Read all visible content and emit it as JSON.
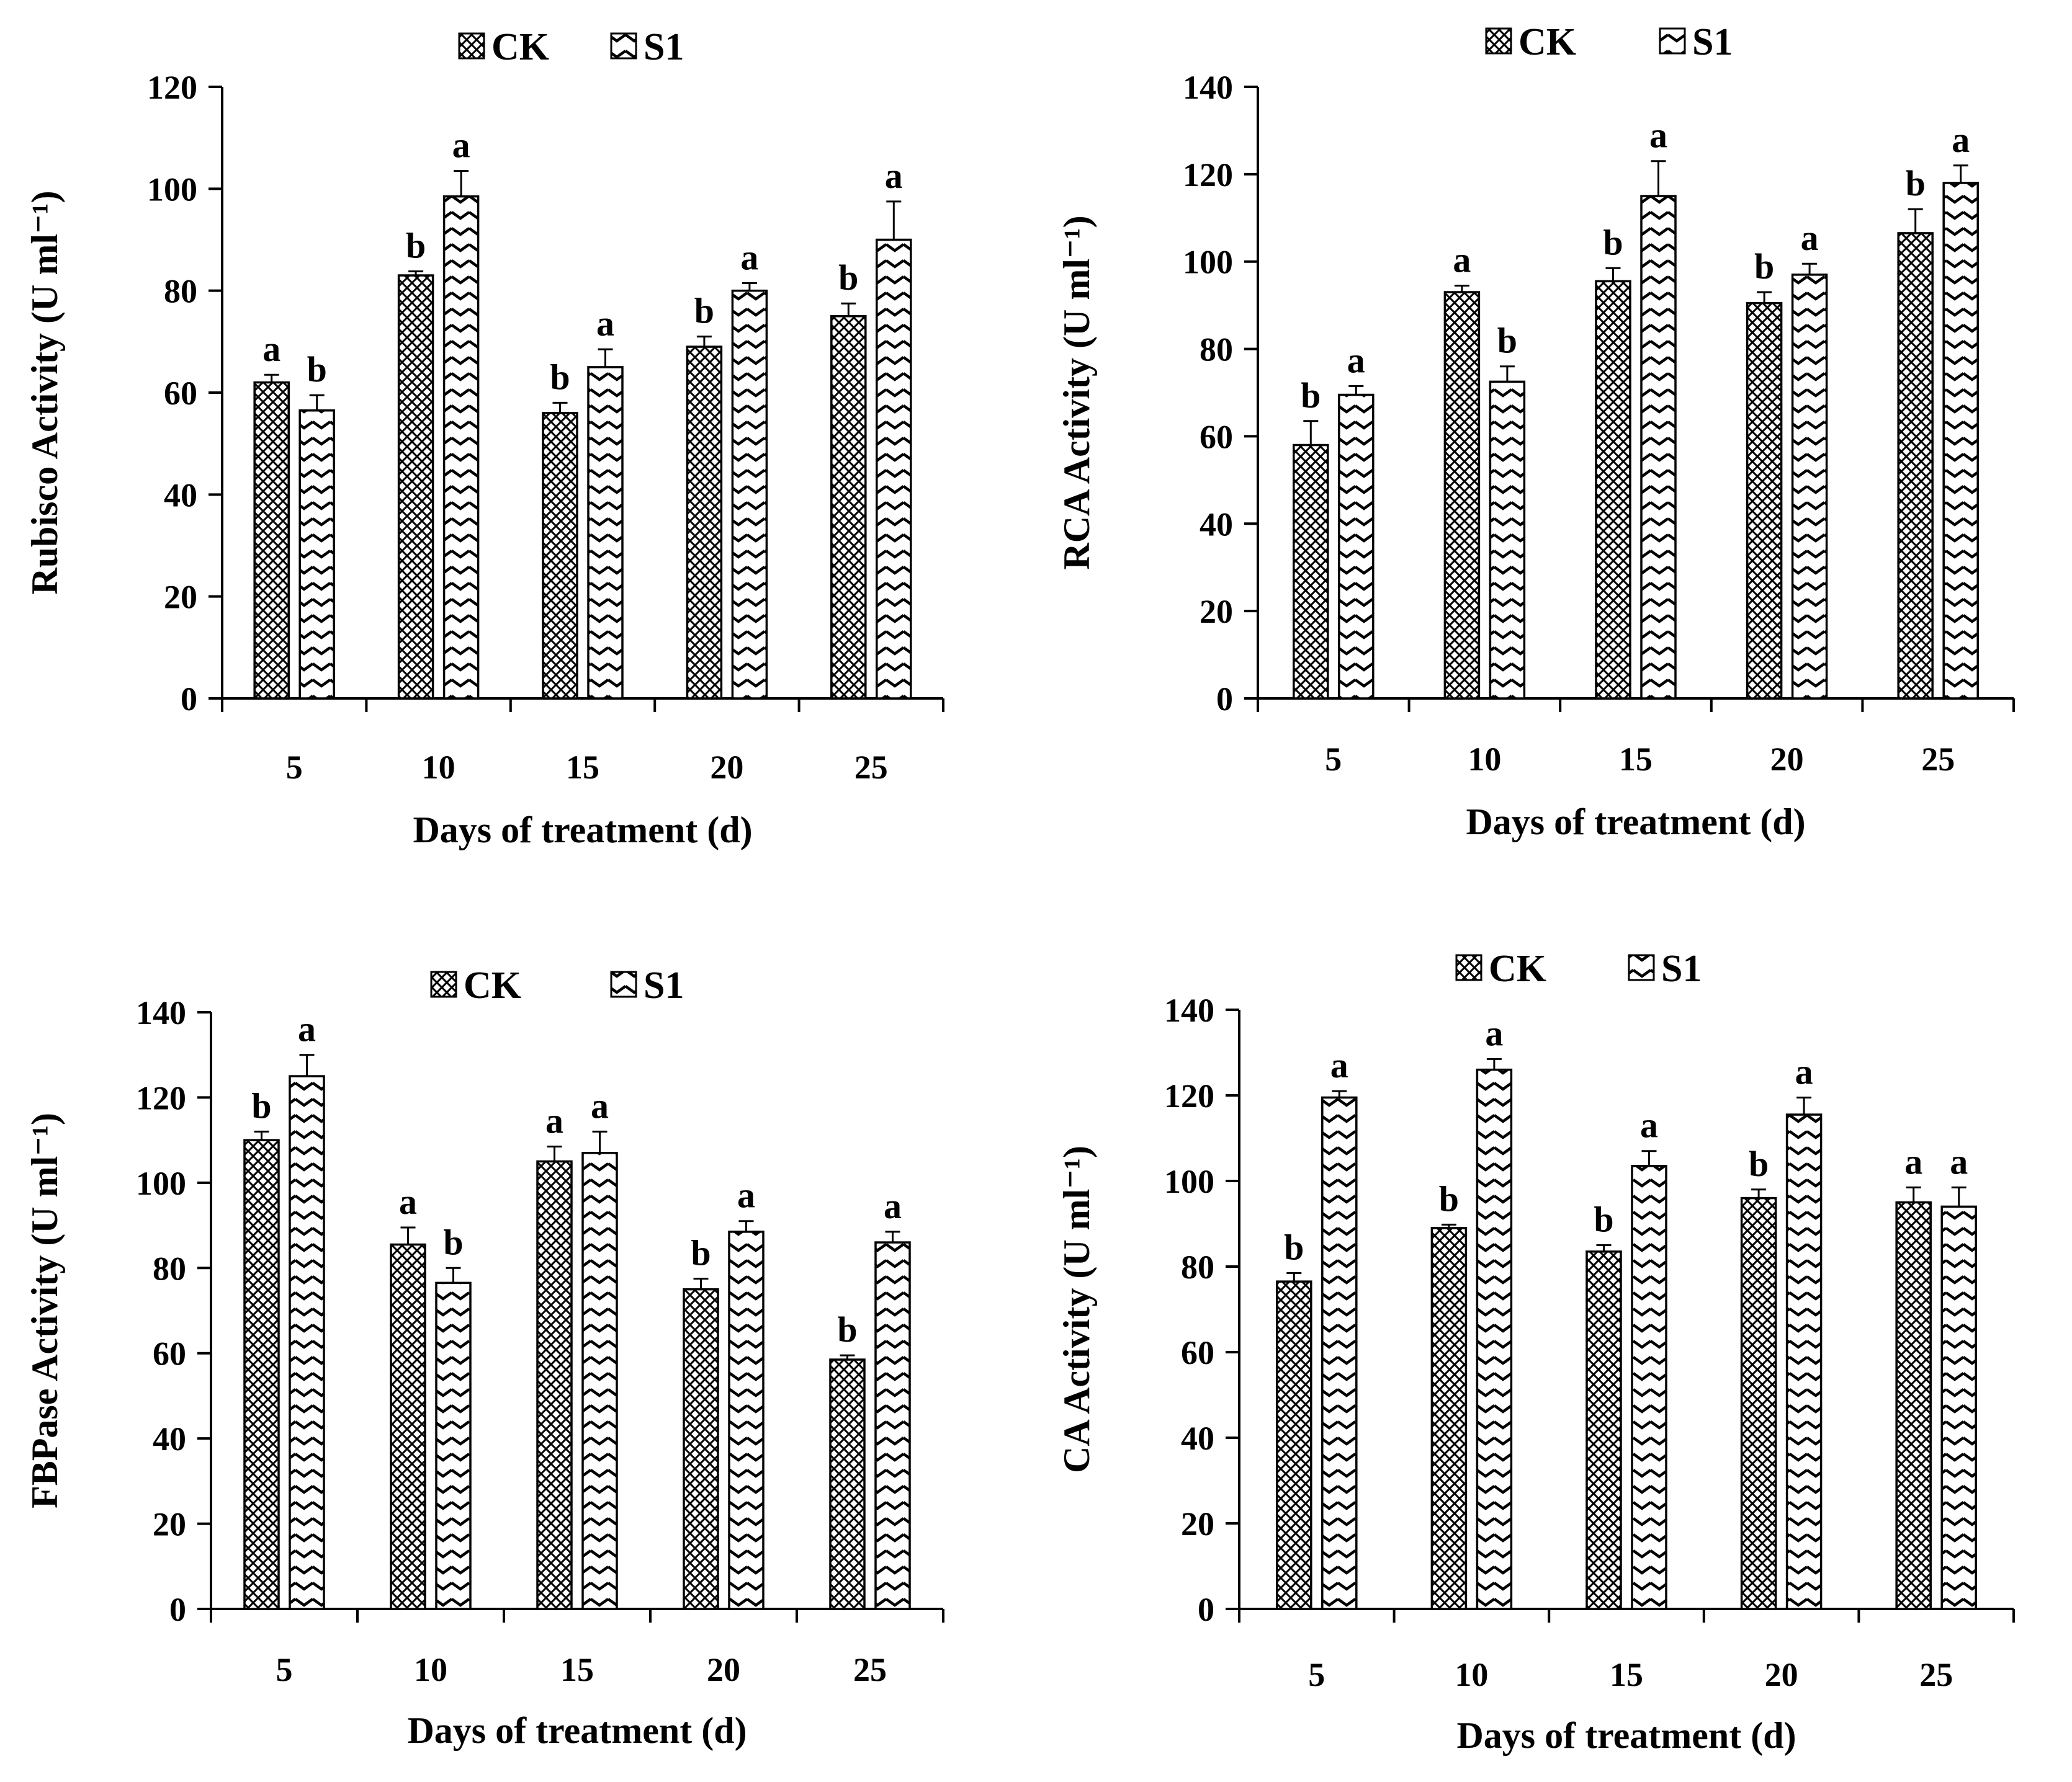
{
  "chart_data": [
    {
      "id": "rubisco",
      "type": "bar",
      "title": "",
      "xlabel": "Days of treatment (d)",
      "ylabel": "Rubisco Activity (U ml⁻¹)",
      "ylim": [
        0,
        120
      ],
      "yticks": [
        0,
        20,
        40,
        60,
        80,
        100,
        120
      ],
      "categories": [
        "5",
        "10",
        "15",
        "20",
        "25"
      ],
      "legend": [
        "CK",
        "S1"
      ],
      "legend_position": "top-center",
      "series": [
        {
          "name": "CK",
          "values": [
            62,
            83,
            56,
            69,
            75
          ],
          "errors": [
            1.5,
            0.8,
            2,
            2,
            2.5
          ],
          "letters": [
            "a",
            "b",
            "b",
            "b",
            "b"
          ]
        },
        {
          "name": "S1",
          "values": [
            56.5,
            98.5,
            65,
            80,
            90
          ],
          "errors": [
            3,
            5,
            3.5,
            1.5,
            7.5
          ],
          "letters": [
            "b",
            "a",
            "a",
            "a",
            "a"
          ]
        }
      ]
    },
    {
      "id": "rca",
      "type": "bar",
      "title": "",
      "xlabel": "Days of treatment (d)",
      "ylabel": "RCA Activity (U ml⁻¹)",
      "ylim": [
        0,
        140
      ],
      "yticks": [
        0,
        20,
        40,
        60,
        80,
        100,
        120,
        140
      ],
      "categories": [
        "5",
        "10",
        "15",
        "20",
        "25"
      ],
      "legend": [
        "CK",
        "S1"
      ],
      "legend_position": "top-center",
      "series": [
        {
          "name": "CK",
          "values": [
            58,
            93,
            95.5,
            90.5,
            106.5
          ],
          "errors": [
            5.5,
            1.5,
            3,
            2.5,
            5.5
          ],
          "letters": [
            "b",
            "a",
            "b",
            "b",
            "b"
          ]
        },
        {
          "name": "S1",
          "values": [
            69.5,
            72.5,
            115,
            97,
            118
          ],
          "errors": [
            2,
            3.5,
            8,
            2.5,
            4
          ],
          "letters": [
            "a",
            "b",
            "a",
            "a",
            "a"
          ]
        }
      ]
    },
    {
      "id": "fbpase",
      "type": "bar",
      "title": "",
      "xlabel": "Days of treatment (d)",
      "ylabel": "FBPase Activity (U ml⁻¹)",
      "ylim": [
        0,
        140
      ],
      "yticks": [
        0,
        20,
        40,
        60,
        80,
        100,
        120,
        140
      ],
      "categories": [
        "5",
        "10",
        "15",
        "20",
        "25"
      ],
      "legend": [
        "CK",
        "S1"
      ],
      "legend_position": "top-center",
      "series": [
        {
          "name": "CK",
          "values": [
            110,
            85.5,
            105,
            75,
            58.5
          ],
          "errors": [
            2,
            4,
            3.5,
            2.5,
            1
          ],
          "letters": [
            "b",
            "a",
            "a",
            "b",
            "b"
          ]
        },
        {
          "name": "S1",
          "values": [
            125,
            76.5,
            107,
            88.5,
            86
          ],
          "errors": [
            5,
            3.5,
            5,
            2.5,
            2.5
          ],
          "letters": [
            "a",
            "b",
            "a",
            "a",
            "a"
          ]
        }
      ]
    },
    {
      "id": "ca",
      "type": "bar",
      "title": "",
      "xlabel": "Days of treatment (d)",
      "ylabel": "CA  Activity (U ml⁻¹)",
      "ylim": [
        0,
        140
      ],
      "yticks": [
        0,
        20,
        40,
        60,
        80,
        100,
        120,
        140
      ],
      "categories": [
        "5",
        "10",
        "15",
        "20",
        "25"
      ],
      "legend": [
        "CK",
        "S1"
      ],
      "legend_position": "top-center",
      "series": [
        {
          "name": "CK",
          "values": [
            76.5,
            89,
            83.5,
            96,
            95
          ],
          "errors": [
            2,
            0.8,
            1.5,
            2,
            3.5
          ],
          "letters": [
            "b",
            "b",
            "b",
            "b",
            "a"
          ]
        },
        {
          "name": "S1",
          "values": [
            119.5,
            126,
            103.5,
            115.5,
            94
          ],
          "errors": [
            1.5,
            2.5,
            3.5,
            4,
            4.5
          ],
          "letters": [
            "a",
            "a",
            "a",
            "a",
            "a"
          ]
        }
      ]
    }
  ]
}
